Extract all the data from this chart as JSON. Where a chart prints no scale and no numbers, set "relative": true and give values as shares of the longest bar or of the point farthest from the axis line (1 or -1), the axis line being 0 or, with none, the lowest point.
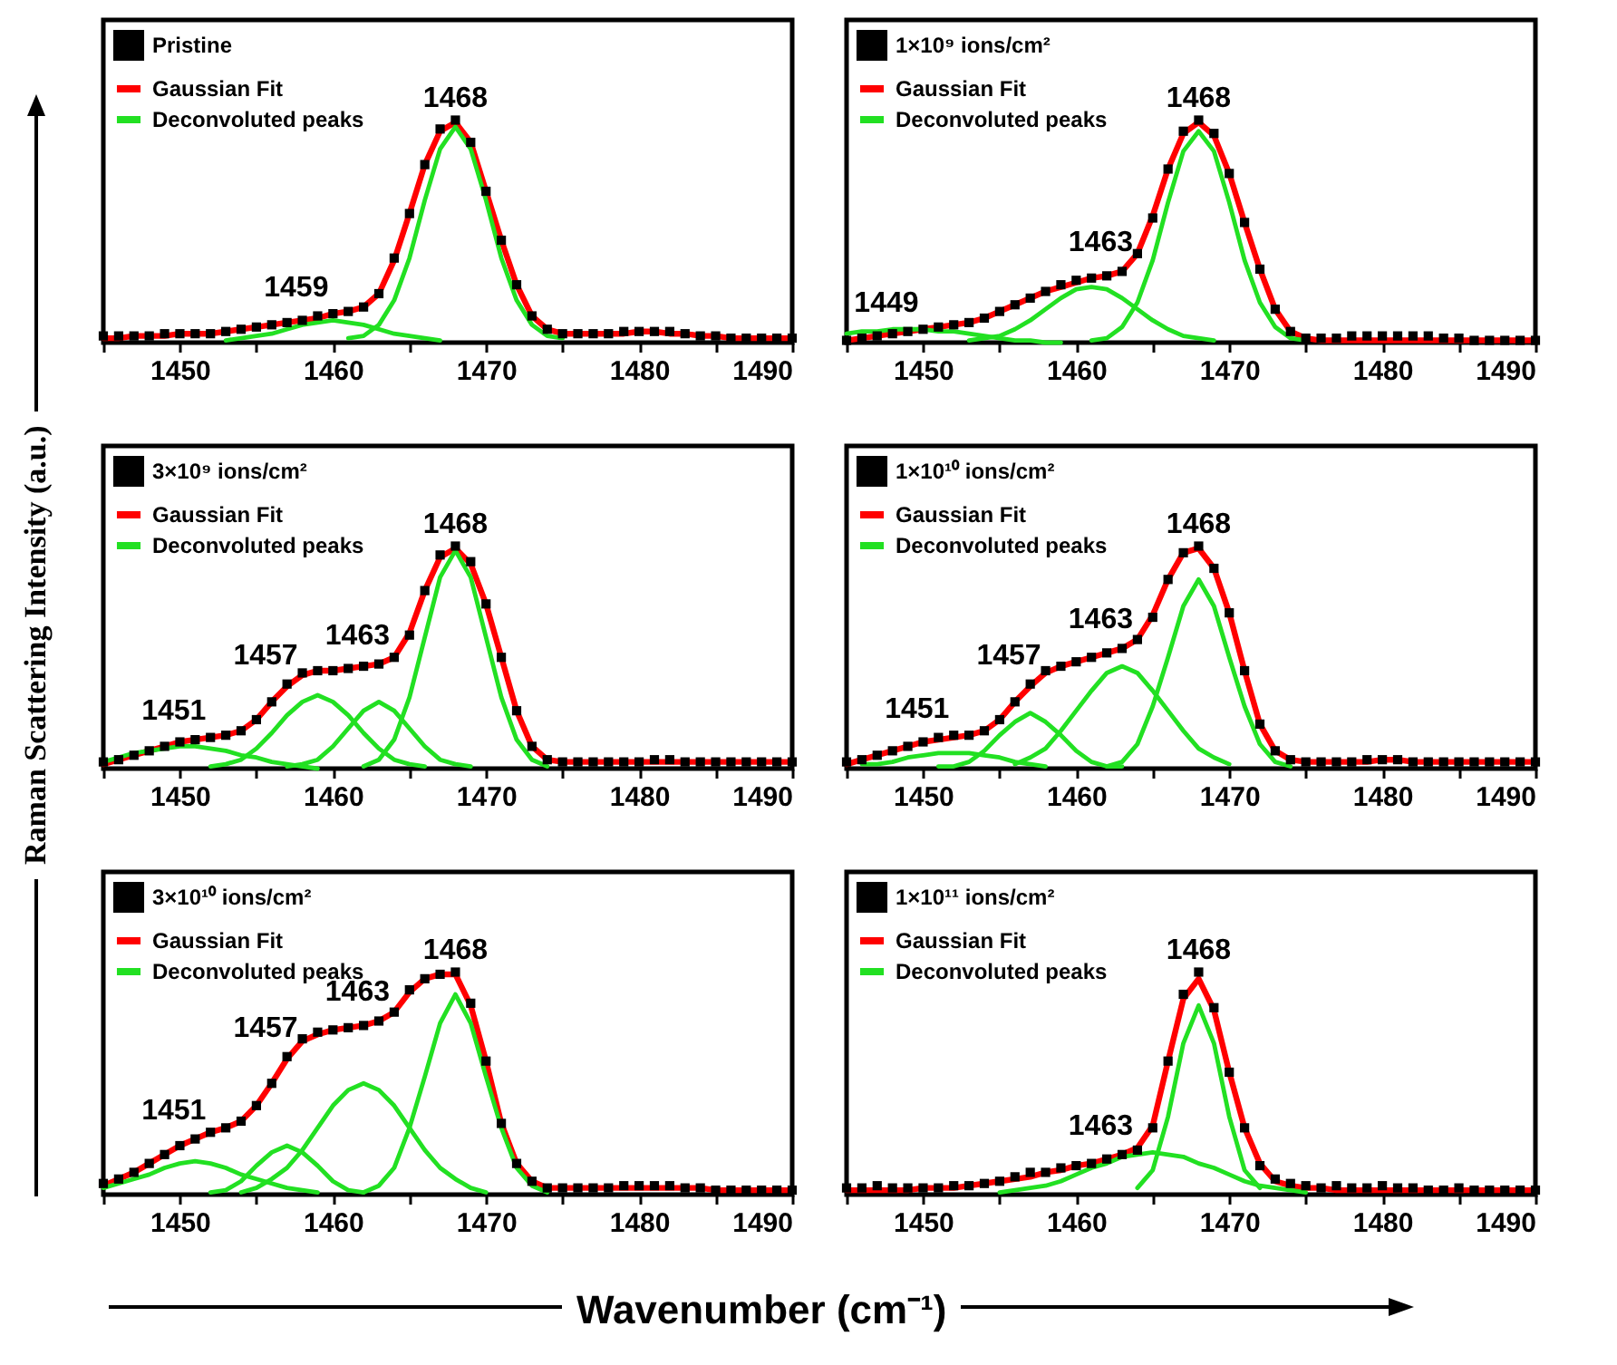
{
  "chart_data": [
    {
      "type": "line",
      "legend": "top left",
      "relative": true,
      "xlim": [
        1445,
        1490
      ],
      "xticks": [
        {
          "value": 1445,
          "label": null
        },
        1450,
        {
          "value": 1455,
          "label": null
        },
        1460,
        {
          "value": 1465,
          "label": null
        },
        1470,
        {
          "value": 1475,
          "label": null
        },
        1480,
        {
          "value": 1485,
          "label": null
        },
        1490
      ],
      "x": [
        1445,
        1446,
        1447,
        1448,
        1449,
        1450,
        1451,
        1452,
        1453,
        1454,
        1455,
        1456,
        1457,
        1458,
        1459,
        1460,
        1461,
        1462,
        1463,
        1464,
        1465,
        1466,
        1467,
        1468,
        1469,
        1470,
        1471,
        1472,
        1473,
        1474,
        1475,
        1476,
        1477,
        1478,
        1479,
        1480,
        1481,
        1482,
        1483,
        1484,
        1485,
        1486,
        1487,
        1488,
        1489,
        1490
      ],
      "series": [
        {
          "name": "Pristine",
          "type": "scatter",
          "marker": "square",
          "color": "#000000",
          "values": [
            0.03,
            0.03,
            0.03,
            0.03,
            0.04,
            0.04,
            0.04,
            0.04,
            0.05,
            0.06,
            0.07,
            0.08,
            0.09,
            0.1,
            0.12,
            0.13,
            0.14,
            0.16,
            0.22,
            0.38,
            0.58,
            0.8,
            0.96,
            1,
            0.9,
            0.68,
            0.46,
            0.26,
            0.12,
            0.06,
            0.04,
            0.04,
            0.04,
            0.04,
            0.05,
            0.05,
            0.05,
            0.05,
            0.04,
            0.03,
            0.03,
            0.02,
            0.02,
            0.02,
            0.02,
            0.02
          ]
        },
        {
          "name": "Gaussian Fit",
          "type": "line",
          "color": "#ff0000",
          "values": [
            0.02,
            0.02,
            0.03,
            0.03,
            0.03,
            0.04,
            0.04,
            0.04,
            0.05,
            0.06,
            0.07,
            0.08,
            0.09,
            0.1,
            0.11,
            0.13,
            0.14,
            0.16,
            0.22,
            0.37,
            0.58,
            0.8,
            0.95,
            0.99,
            0.9,
            0.68,
            0.46,
            0.26,
            0.12,
            0.06,
            0.04,
            0.04,
            0.04,
            0.04,
            0.04,
            0.05,
            0.05,
            0.04,
            0.04,
            0.03,
            0.03,
            0.02,
            0.02,
            0.02,
            0.02,
            0.02
          ]
        },
        {
          "name": "Deconvoluted peaks",
          "type": "line",
          "color": "#22e022",
          "x": [
            1461,
            1462,
            1463,
            1464,
            1465,
            1466,
            1467,
            1468,
            1469,
            1470,
            1471,
            1472,
            1473,
            1474,
            1475
          ],
          "values": [
            0.02,
            0.03,
            0.08,
            0.19,
            0.38,
            0.64,
            0.87,
            0.97,
            0.87,
            0.64,
            0.38,
            0.19,
            0.08,
            0.03,
            0.02
          ]
        },
        {
          "type": "line",
          "color": "#22e022",
          "x": [
            1453,
            1454,
            1455,
            1456,
            1457,
            1458,
            1459,
            1460,
            1461,
            1462,
            1463,
            1464,
            1465,
            1466,
            1467
          ],
          "values": [
            0.01,
            0.02,
            0.03,
            0.04,
            0.06,
            0.08,
            0.09,
            0.1,
            0.09,
            0.08,
            0.06,
            0.04,
            0.03,
            0.02,
            0.01
          ]
        }
      ],
      "annotations": [
        {
          "text": "1459",
          "x": 1459,
          "y": 0.12
        },
        {
          "text": "1468",
          "x": 1468,
          "y": 1
        }
      ]
    },
    {
      "type": "line",
      "legend": "top left",
      "relative": true,
      "xlim": [
        1445,
        1490
      ],
      "xticks": [
        {
          "value": 1445,
          "label": null
        },
        1450,
        {
          "value": 1455,
          "label": null
        },
        1460,
        {
          "value": 1465,
          "label": null
        },
        1470,
        {
          "value": 1475,
          "label": null
        },
        1480,
        {
          "value": 1485,
          "label": null
        },
        1490
      ],
      "x": [
        1445,
        1446,
        1447,
        1448,
        1449,
        1450,
        1451,
        1452,
        1453,
        1454,
        1455,
        1456,
        1457,
        1458,
        1459,
        1460,
        1461,
        1462,
        1463,
        1464,
        1465,
        1466,
        1467,
        1468,
        1469,
        1470,
        1471,
        1472,
        1473,
        1474,
        1475,
        1476,
        1477,
        1478,
        1479,
        1480,
        1481,
        1482,
        1483,
        1484,
        1485,
        1486,
        1487,
        1488,
        1489,
        1490
      ],
      "series": [
        {
          "name": "1×10⁹ ions/cm²",
          "type": "scatter",
          "marker": "square",
          "color": "#000000",
          "values": [
            0.01,
            0.02,
            0.03,
            0.04,
            0.05,
            0.06,
            0.07,
            0.08,
            0.09,
            0.11,
            0.14,
            0.17,
            0.2,
            0.23,
            0.26,
            0.28,
            0.29,
            0.3,
            0.32,
            0.4,
            0.56,
            0.78,
            0.95,
            1,
            0.94,
            0.76,
            0.54,
            0.33,
            0.15,
            0.05,
            0.02,
            0.02,
            0.02,
            0.03,
            0.03,
            0.03,
            0.03,
            0.03,
            0.03,
            0.02,
            0.02,
            0.01,
            0.01,
            0.01,
            0.01,
            0.01
          ]
        },
        {
          "name": "Gaussian Fit",
          "type": "line",
          "color": "#ff0000",
          "values": [
            0.01,
            0.02,
            0.03,
            0.04,
            0.05,
            0.06,
            0.07,
            0.08,
            0.09,
            0.11,
            0.14,
            0.17,
            0.2,
            0.23,
            0.25,
            0.27,
            0.29,
            0.3,
            0.32,
            0.4,
            0.57,
            0.78,
            0.94,
            0.99,
            0.93,
            0.76,
            0.54,
            0.33,
            0.15,
            0.05,
            0.02,
            0.01,
            0.01,
            0.01,
            0.01,
            0.01,
            0.01,
            0.01,
            0.01,
            0.01,
            0.01,
            0.01,
            0.01,
            0.01,
            0.01,
            0.01
          ]
        },
        {
          "name": "Deconvoluted peaks",
          "type": "line",
          "color": "#22e022",
          "x": [
            1461,
            1462,
            1463,
            1464,
            1465,
            1466,
            1467,
            1468,
            1469,
            1470,
            1471,
            1472,
            1473,
            1474,
            1475
          ],
          "values": [
            0.01,
            0.02,
            0.07,
            0.18,
            0.37,
            0.63,
            0.86,
            0.95,
            0.86,
            0.63,
            0.37,
            0.18,
            0.07,
            0.02,
            0.01
          ]
        },
        {
          "type": "line",
          "color": "#22e022",
          "x": [
            1453,
            1454,
            1455,
            1456,
            1457,
            1458,
            1459,
            1460,
            1461,
            1462,
            1463,
            1464,
            1465,
            1466,
            1467,
            1468,
            1469
          ],
          "values": [
            0.01,
            0.02,
            0.03,
            0.06,
            0.1,
            0.15,
            0.2,
            0.24,
            0.25,
            0.24,
            0.2,
            0.15,
            0.1,
            0.06,
            0.03,
            0.02,
            0.01
          ]
        },
        {
          "type": "line",
          "color": "#22e022",
          "x": [
            1445,
            1446,
            1447,
            1448,
            1449,
            1450,
            1451,
            1452,
            1453,
            1454,
            1455,
            1456,
            1457,
            1458,
            1459
          ],
          "values": [
            0.04,
            0.05,
            0.05,
            0.06,
            0.06,
            0.06,
            0.05,
            0.05,
            0.04,
            0.03,
            0.02,
            0.01,
            0.01,
            0,
            0
          ]
        }
      ],
      "annotations": [
        {
          "text": "1449",
          "x": 1449,
          "y": 0.05
        },
        {
          "text": "1463",
          "x": 1463,
          "y": 0.32
        },
        {
          "text": "1468",
          "x": 1468,
          "y": 1
        }
      ]
    },
    {
      "type": "line",
      "legend": "top left",
      "relative": true,
      "xlim": [
        1445,
        1490
      ],
      "xticks": [
        {
          "value": 1445,
          "label": null
        },
        1450,
        {
          "value": 1455,
          "label": null
        },
        1460,
        {
          "value": 1465,
          "label": null
        },
        1470,
        {
          "value": 1475,
          "label": null
        },
        1480,
        {
          "value": 1485,
          "label": null
        },
        1490
      ],
      "x": [
        1445,
        1446,
        1447,
        1448,
        1449,
        1450,
        1451,
        1452,
        1453,
        1454,
        1455,
        1456,
        1457,
        1458,
        1459,
        1460,
        1461,
        1462,
        1463,
        1464,
        1465,
        1466,
        1467,
        1468,
        1469,
        1470,
        1471,
        1472,
        1473,
        1474,
        1475,
        1476,
        1477,
        1478,
        1479,
        1480,
        1481,
        1482,
        1483,
        1484,
        1485,
        1486,
        1487,
        1488,
        1489,
        1490
      ],
      "series": [
        {
          "name": "3×10⁹ ions/cm²",
          "type": "scatter",
          "marker": "square",
          "color": "#000000",
          "values": [
            0.03,
            0.04,
            0.06,
            0.08,
            0.1,
            0.12,
            0.13,
            0.14,
            0.15,
            0.17,
            0.22,
            0.3,
            0.38,
            0.43,
            0.44,
            0.44,
            0.45,
            0.46,
            0.47,
            0.5,
            0.6,
            0.8,
            0.96,
            1,
            0.93,
            0.74,
            0.5,
            0.26,
            0.1,
            0.04,
            0.03,
            0.03,
            0.03,
            0.03,
            0.03,
            0.03,
            0.04,
            0.04,
            0.03,
            0.03,
            0.03,
            0.03,
            0.03,
            0.03,
            0.03,
            0.03
          ]
        },
        {
          "name": "Gaussian Fit",
          "type": "line",
          "color": "#ff0000",
          "values": [
            0.02,
            0.04,
            0.06,
            0.08,
            0.1,
            0.12,
            0.13,
            0.14,
            0.15,
            0.17,
            0.22,
            0.3,
            0.37,
            0.42,
            0.44,
            0.44,
            0.45,
            0.46,
            0.47,
            0.5,
            0.61,
            0.8,
            0.95,
            0.99,
            0.92,
            0.74,
            0.5,
            0.26,
            0.1,
            0.04,
            0.03,
            0.03,
            0.03,
            0.03,
            0.03,
            0.03,
            0.03,
            0.03,
            0.03,
            0.03,
            0.03,
            0.03,
            0.03,
            0.03,
            0.03,
            0.03
          ]
        },
        {
          "name": "Deconvoluted peaks",
          "type": "line",
          "color": "#22e022",
          "x": [
            1462,
            1463,
            1464,
            1465,
            1466,
            1467,
            1468,
            1469,
            1470,
            1471,
            1472,
            1473,
            1474
          ],
          "values": [
            0.01,
            0.04,
            0.13,
            0.32,
            0.59,
            0.86,
            0.98,
            0.86,
            0.59,
            0.32,
            0.13,
            0.04,
            0.01
          ]
        },
        {
          "type": "line",
          "color": "#22e022",
          "x": [
            1457,
            1458,
            1459,
            1460,
            1461,
            1462,
            1463,
            1464,
            1465,
            1466,
            1467,
            1468,
            1469
          ],
          "values": [
            0.01,
            0.02,
            0.04,
            0.1,
            0.18,
            0.26,
            0.3,
            0.26,
            0.18,
            0.1,
            0.04,
            0.02,
            0.01
          ]
        },
        {
          "type": "line",
          "color": "#22e022",
          "x": [
            1452,
            1453,
            1454,
            1455,
            1456,
            1457,
            1458,
            1459,
            1460,
            1461,
            1462,
            1463,
            1464,
            1465,
            1466
          ],
          "values": [
            0.01,
            0.02,
            0.04,
            0.09,
            0.16,
            0.24,
            0.3,
            0.33,
            0.3,
            0.24,
            0.16,
            0.09,
            0.04,
            0.02,
            0.01
          ]
        },
        {
          "type": "line",
          "color": "#22e022",
          "x": [
            1445,
            1446,
            1447,
            1448,
            1449,
            1450,
            1451,
            1452,
            1453,
            1454,
            1455,
            1456,
            1457,
            1458,
            1459
          ],
          "values": [
            0.03,
            0.05,
            0.07,
            0.08,
            0.09,
            0.1,
            0.1,
            0.09,
            0.08,
            0.06,
            0.05,
            0.03,
            0.02,
            0.01,
            0
          ]
        }
      ],
      "annotations": [
        {
          "text": "1451",
          "x": 1451,
          "y": 0.13
        },
        {
          "text": "1457",
          "x": 1457,
          "y": 0.38
        },
        {
          "text": "1463",
          "x": 1463,
          "y": 0.47
        },
        {
          "text": "1468",
          "x": 1468,
          "y": 1
        }
      ]
    },
    {
      "type": "line",
      "legend": "top left",
      "relative": true,
      "xlim": [
        1445,
        1490
      ],
      "xticks": [
        {
          "value": 1445,
          "label": null
        },
        1450,
        {
          "value": 1455,
          "label": null
        },
        1460,
        {
          "value": 1465,
          "label": null
        },
        1470,
        {
          "value": 1475,
          "label": null
        },
        1480,
        {
          "value": 1485,
          "label": null
        },
        1490
      ],
      "x": [
        1445,
        1446,
        1447,
        1448,
        1449,
        1450,
        1451,
        1452,
        1453,
        1454,
        1455,
        1456,
        1457,
        1458,
        1459,
        1460,
        1461,
        1462,
        1463,
        1464,
        1465,
        1466,
        1467,
        1468,
        1469,
        1470,
        1471,
        1472,
        1473,
        1474,
        1475,
        1476,
        1477,
        1478,
        1479,
        1480,
        1481,
        1482,
        1483,
        1484,
        1485,
        1486,
        1487,
        1488,
        1489,
        1490
      ],
      "series": [
        {
          "name": "1×10¹⁰ ions/cm²",
          "type": "scatter",
          "marker": "square",
          "color": "#000000",
          "values": [
            0.03,
            0.04,
            0.06,
            0.08,
            0.1,
            0.12,
            0.14,
            0.15,
            0.15,
            0.17,
            0.22,
            0.3,
            0.38,
            0.44,
            0.46,
            0.48,
            0.5,
            0.52,
            0.54,
            0.58,
            0.68,
            0.85,
            0.97,
            1,
            0.9,
            0.7,
            0.44,
            0.2,
            0.08,
            0.04,
            0.03,
            0.03,
            0.03,
            0.03,
            0.04,
            0.04,
            0.04,
            0.03,
            0.03,
            0.03,
            0.03,
            0.03,
            0.03,
            0.03,
            0.03,
            0.03
          ]
        },
        {
          "name": "Gaussian Fit",
          "type": "line",
          "color": "#ff0000",
          "values": [
            0.02,
            0.04,
            0.06,
            0.08,
            0.1,
            0.12,
            0.13,
            0.14,
            0.15,
            0.17,
            0.22,
            0.3,
            0.37,
            0.43,
            0.46,
            0.48,
            0.5,
            0.52,
            0.54,
            0.58,
            0.69,
            0.85,
            0.97,
            0.99,
            0.9,
            0.7,
            0.44,
            0.2,
            0.08,
            0.04,
            0.03,
            0.03,
            0.03,
            0.03,
            0.03,
            0.04,
            0.04,
            0.03,
            0.03,
            0.03,
            0.03,
            0.03,
            0.03,
            0.03,
            0.03,
            0.03
          ]
        },
        {
          "name": "Deconvoluted peaks",
          "type": "line",
          "color": "#22e022",
          "x": [
            1462,
            1463,
            1464,
            1465,
            1466,
            1467,
            1468,
            1469,
            1470,
            1471,
            1472,
            1473,
            1474
          ],
          "values": [
            0.01,
            0.03,
            0.11,
            0.28,
            0.5,
            0.73,
            0.85,
            0.73,
            0.5,
            0.28,
            0.11,
            0.03,
            0.01
          ]
        },
        {
          "type": "line",
          "color": "#22e022",
          "x": [
            1456,
            1457,
            1458,
            1459,
            1460,
            1461,
            1462,
            1463,
            1464,
            1465,
            1466,
            1467,
            1468,
            1469,
            1470
          ],
          "values": [
            0.02,
            0.05,
            0.09,
            0.17,
            0.26,
            0.35,
            0.43,
            0.46,
            0.43,
            0.35,
            0.26,
            0.17,
            0.09,
            0.05,
            0.02
          ]
        },
        {
          "type": "line",
          "color": "#22e022",
          "x": [
            1451,
            1452,
            1453,
            1454,
            1455,
            1456,
            1457,
            1458,
            1459,
            1460,
            1461,
            1462,
            1463
          ],
          "values": [
            0.01,
            0.01,
            0.03,
            0.08,
            0.15,
            0.21,
            0.25,
            0.21,
            0.15,
            0.08,
            0.03,
            0.01,
            0.01
          ]
        },
        {
          "type": "line",
          "color": "#22e022",
          "x": [
            1446,
            1447,
            1448,
            1449,
            1450,
            1451,
            1452,
            1453,
            1454,
            1455,
            1456,
            1457,
            1458
          ],
          "values": [
            0.02,
            0.02,
            0.03,
            0.05,
            0.06,
            0.07,
            0.07,
            0.07,
            0.06,
            0.05,
            0.03,
            0.02,
            0.01
          ]
        }
      ],
      "annotations": [
        {
          "text": "1451",
          "x": 1451,
          "y": 0.14
        },
        {
          "text": "1457",
          "x": 1457,
          "y": 0.38
        },
        {
          "text": "1463",
          "x": 1463,
          "y": 0.54
        },
        {
          "text": "1468",
          "x": 1468,
          "y": 1
        }
      ]
    },
    {
      "type": "line",
      "legend": "top left",
      "relative": true,
      "xlabel": "Wavenumber (cm⁻¹)",
      "xlim": [
        1445,
        1490
      ],
      "xticks": [
        {
          "value": 1445,
          "label": null
        },
        1450,
        {
          "value": 1455,
          "label": null
        },
        1460,
        {
          "value": 1465,
          "label": null
        },
        1470,
        {
          "value": 1475,
          "label": null
        },
        1480,
        {
          "value": 1485,
          "label": null
        },
        1490
      ],
      "x": [
        1445,
        1446,
        1447,
        1448,
        1449,
        1450,
        1451,
        1452,
        1453,
        1454,
        1455,
        1456,
        1457,
        1458,
        1459,
        1460,
        1461,
        1462,
        1463,
        1464,
        1465,
        1466,
        1467,
        1468,
        1469,
        1470,
        1471,
        1472,
        1473,
        1474,
        1475,
        1476,
        1477,
        1478,
        1479,
        1480,
        1481,
        1482,
        1483,
        1484,
        1485,
        1486,
        1487,
        1488,
        1489,
        1490
      ],
      "series": [
        {
          "name": "3×10¹⁰ ions/cm²",
          "type": "scatter",
          "marker": "square",
          "color": "#000000",
          "values": [
            0.05,
            0.07,
            0.1,
            0.14,
            0.18,
            0.22,
            0.25,
            0.28,
            0.3,
            0.33,
            0.4,
            0.5,
            0.62,
            0.7,
            0.73,
            0.74,
            0.75,
            0.76,
            0.78,
            0.82,
            0.92,
            0.97,
            0.99,
            1,
            0.86,
            0.6,
            0.32,
            0.14,
            0.06,
            0.03,
            0.03,
            0.03,
            0.03,
            0.03,
            0.04,
            0.04,
            0.04,
            0.04,
            0.03,
            0.03,
            0.02,
            0.02,
            0.02,
            0.02,
            0.02,
            0.02
          ]
        },
        {
          "name": "Gaussian Fit",
          "type": "line",
          "color": "#ff0000",
          "values": [
            0.04,
            0.07,
            0.1,
            0.14,
            0.18,
            0.22,
            0.25,
            0.28,
            0.3,
            0.33,
            0.4,
            0.5,
            0.61,
            0.69,
            0.72,
            0.74,
            0.75,
            0.76,
            0.78,
            0.82,
            0.91,
            0.97,
            0.99,
            0.99,
            0.85,
            0.6,
            0.32,
            0.14,
            0.06,
            0.03,
            0.03,
            0.03,
            0.03,
            0.03,
            0.03,
            0.03,
            0.03,
            0.03,
            0.03,
            0.03,
            0.02,
            0.02,
            0.02,
            0.02,
            0.02,
            0.02
          ]
        },
        {
          "name": "Deconvoluted peaks",
          "type": "line",
          "color": "#22e022",
          "x": [
            1462,
            1463,
            1464,
            1465,
            1466,
            1467,
            1468,
            1469,
            1470,
            1471,
            1472,
            1473,
            1474
          ],
          "values": [
            0.01,
            0.04,
            0.12,
            0.3,
            0.53,
            0.77,
            0.9,
            0.77,
            0.53,
            0.3,
            0.12,
            0.04,
            0.01
          ]
        },
        {
          "type": "line",
          "color": "#22e022",
          "x": [
            1454,
            1455,
            1456,
            1457,
            1458,
            1459,
            1460,
            1461,
            1462,
            1463,
            1464,
            1465,
            1466,
            1467,
            1468,
            1469,
            1470
          ],
          "values": [
            0.01,
            0.03,
            0.07,
            0.12,
            0.2,
            0.3,
            0.4,
            0.47,
            0.5,
            0.47,
            0.4,
            0.3,
            0.2,
            0.12,
            0.07,
            0.03,
            0.01
          ]
        },
        {
          "type": "line",
          "color": "#22e022",
          "x": [
            1452,
            1453,
            1454,
            1455,
            1456,
            1457,
            1458,
            1459,
            1460,
            1461,
            1462
          ],
          "values": [
            0.01,
            0.02,
            0.06,
            0.13,
            0.19,
            0.22,
            0.19,
            0.13,
            0.06,
            0.02,
            0.01
          ]
        },
        {
          "type": "line",
          "color": "#22e022",
          "x": [
            1445,
            1446,
            1447,
            1448,
            1449,
            1450,
            1451,
            1452,
            1453,
            1454,
            1455,
            1456,
            1457,
            1458,
            1459
          ],
          "values": [
            0.03,
            0.05,
            0.07,
            0.09,
            0.12,
            0.14,
            0.15,
            0.14,
            0.12,
            0.09,
            0.07,
            0.05,
            0.03,
            0.02,
            0.01
          ]
        }
      ],
      "annotations": [
        {
          "text": "1451",
          "x": 1451,
          "y": 0.25
        },
        {
          "text": "1457",
          "x": 1457,
          "y": 0.62
        },
        {
          "text": "1463",
          "x": 1463,
          "y": 0.78
        },
        {
          "text": "1468",
          "x": 1468,
          "y": 1
        }
      ]
    },
    {
      "type": "line",
      "legend": "top left",
      "relative": true,
      "ylabel": "Raman Scattering Intensity (a.u.)",
      "xlim": [
        1445,
        1490
      ],
      "xticks": [
        {
          "value": 1445,
          "label": null
        },
        1450,
        {
          "value": 1455,
          "label": null
        },
        1460,
        {
          "value": 1465,
          "label": null
        },
        1470,
        {
          "value": 1475,
          "label": null
        },
        1480,
        {
          "value": 1485,
          "label": null
        },
        1490
      ],
      "x": [
        1445,
        1446,
        1447,
        1448,
        1449,
        1450,
        1451,
        1452,
        1453,
        1454,
        1455,
        1456,
        1457,
        1458,
        1459,
        1460,
        1461,
        1462,
        1463,
        1464,
        1465,
        1466,
        1467,
        1468,
        1469,
        1470,
        1471,
        1472,
        1473,
        1474,
        1475,
        1476,
        1477,
        1478,
        1479,
        1480,
        1481,
        1482,
        1483,
        1484,
        1485,
        1486,
        1487,
        1488,
        1489,
        1490
      ],
      "series": [
        {
          "name": "1×10¹¹ ions/cm²",
          "type": "scatter",
          "marker": "square",
          "color": "#000000",
          "values": [
            0.03,
            0.03,
            0.04,
            0.03,
            0.03,
            0.03,
            0.03,
            0.04,
            0.04,
            0.05,
            0.06,
            0.08,
            0.1,
            0.1,
            0.12,
            0.13,
            0.14,
            0.16,
            0.18,
            0.2,
            0.3,
            0.6,
            0.9,
            1,
            0.84,
            0.55,
            0.3,
            0.13,
            0.07,
            0.05,
            0.04,
            0.03,
            0.04,
            0.03,
            0.03,
            0.04,
            0.03,
            0.03,
            0.02,
            0.02,
            0.03,
            0.02,
            0.02,
            0.02,
            0.02,
            0.02
          ]
        },
        {
          "name": "Gaussian Fit",
          "type": "line",
          "color": "#ff0000",
          "values": [
            0.02,
            0.02,
            0.02,
            0.02,
            0.02,
            0.03,
            0.03,
            0.03,
            0.04,
            0.05,
            0.06,
            0.07,
            0.08,
            0.1,
            0.11,
            0.13,
            0.14,
            0.16,
            0.18,
            0.21,
            0.31,
            0.6,
            0.88,
            0.97,
            0.83,
            0.55,
            0.3,
            0.14,
            0.06,
            0.04,
            0.03,
            0.03,
            0.02,
            0.02,
            0.02,
            0.02,
            0.02,
            0.02,
            0.02,
            0.02,
            0.02,
            0.02,
            0.02,
            0.02,
            0.02,
            0.02
          ]
        },
        {
          "name": "Deconvoluted peaks",
          "type": "line",
          "color": "#22e022",
          "x": [
            1464,
            1465,
            1466,
            1467,
            1468,
            1469,
            1470,
            1471,
            1472
          ],
          "values": [
            0.03,
            0.11,
            0.35,
            0.68,
            0.85,
            0.68,
            0.35,
            0.11,
            0.03
          ]
        },
        {
          "type": "line",
          "color": "#22e022",
          "x": [
            1455,
            1456,
            1457,
            1458,
            1459,
            1460,
            1461,
            1462,
            1463,
            1464,
            1465,
            1466,
            1467,
            1468,
            1469,
            1470,
            1471,
            1472,
            1473,
            1474,
            1475
          ],
          "values": [
            0.01,
            0.02,
            0.03,
            0.04,
            0.06,
            0.09,
            0.12,
            0.14,
            0.17,
            0.18,
            0.19,
            0.18,
            0.17,
            0.14,
            0.12,
            0.09,
            0.06,
            0.04,
            0.03,
            0.02,
            0.01
          ]
        }
      ],
      "annotations": [
        {
          "text": "1463",
          "x": 1463,
          "y": 0.18
        },
        {
          "text": "1468",
          "x": 1468,
          "y": 1
        }
      ]
    }
  ]
}
